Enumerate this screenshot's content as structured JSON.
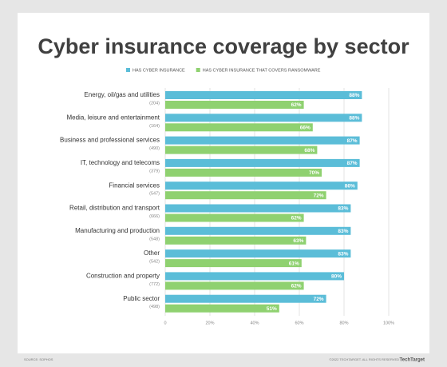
{
  "chart_data": {
    "type": "bar",
    "orientation": "horizontal",
    "title": "Cyber insurance coverage by sector",
    "categories": [
      "Energy, oil/gas and utilities",
      "Media, leisure and entertainment",
      "Business and professional services",
      "IT, technology and telecoms",
      "Financial services",
      "Retail, distribution and transport",
      "Manufacturing and production",
      "Other",
      "Construction and property",
      "Public sector"
    ],
    "category_counts": [
      "(204)",
      "(164)",
      "(490)",
      "(379)",
      "(547)",
      "(666)",
      "(548)",
      "(542)",
      "(772)",
      "(498)"
    ],
    "series": [
      {
        "name": "HAS CYBER INSURANCE",
        "color": "#5bbdd8",
        "values": [
          88,
          88,
          87,
          87,
          86,
          83,
          83,
          83,
          80,
          72
        ],
        "value_labels": [
          "88%",
          "88%",
          "87%",
          "87%",
          "86%",
          "83%",
          "83%",
          "83%",
          "80%",
          "72%"
        ]
      },
      {
        "name": "HAS CYBER INSURANCE THAT COVERS RANSOMWARE",
        "color": "#8fd170",
        "values": [
          62,
          66,
          68,
          70,
          72,
          62,
          63,
          61,
          62,
          51
        ],
        "value_labels": [
          "62%",
          "66%",
          "68%",
          "70%",
          "72%",
          "62%",
          "63%",
          "61%",
          "62%",
          "51%"
        ]
      }
    ],
    "xlim": [
      0,
      100
    ],
    "xticks": [
      0,
      {
        "value": 20,
        "label": "20%"
      },
      {
        "value": 40,
        "label": "40%"
      },
      {
        "value": 60,
        "label": "60%"
      },
      {
        "value": 80,
        "label": "80%"
      },
      {
        "value": 100,
        "label": "100%"
      }
    ],
    "grid": true,
    "source": "SOURCE: SOPHOS",
    "credit": "©2022 TECHTARGET. ALL RIGHTS RESERVED",
    "brand": "TechTarget"
  }
}
